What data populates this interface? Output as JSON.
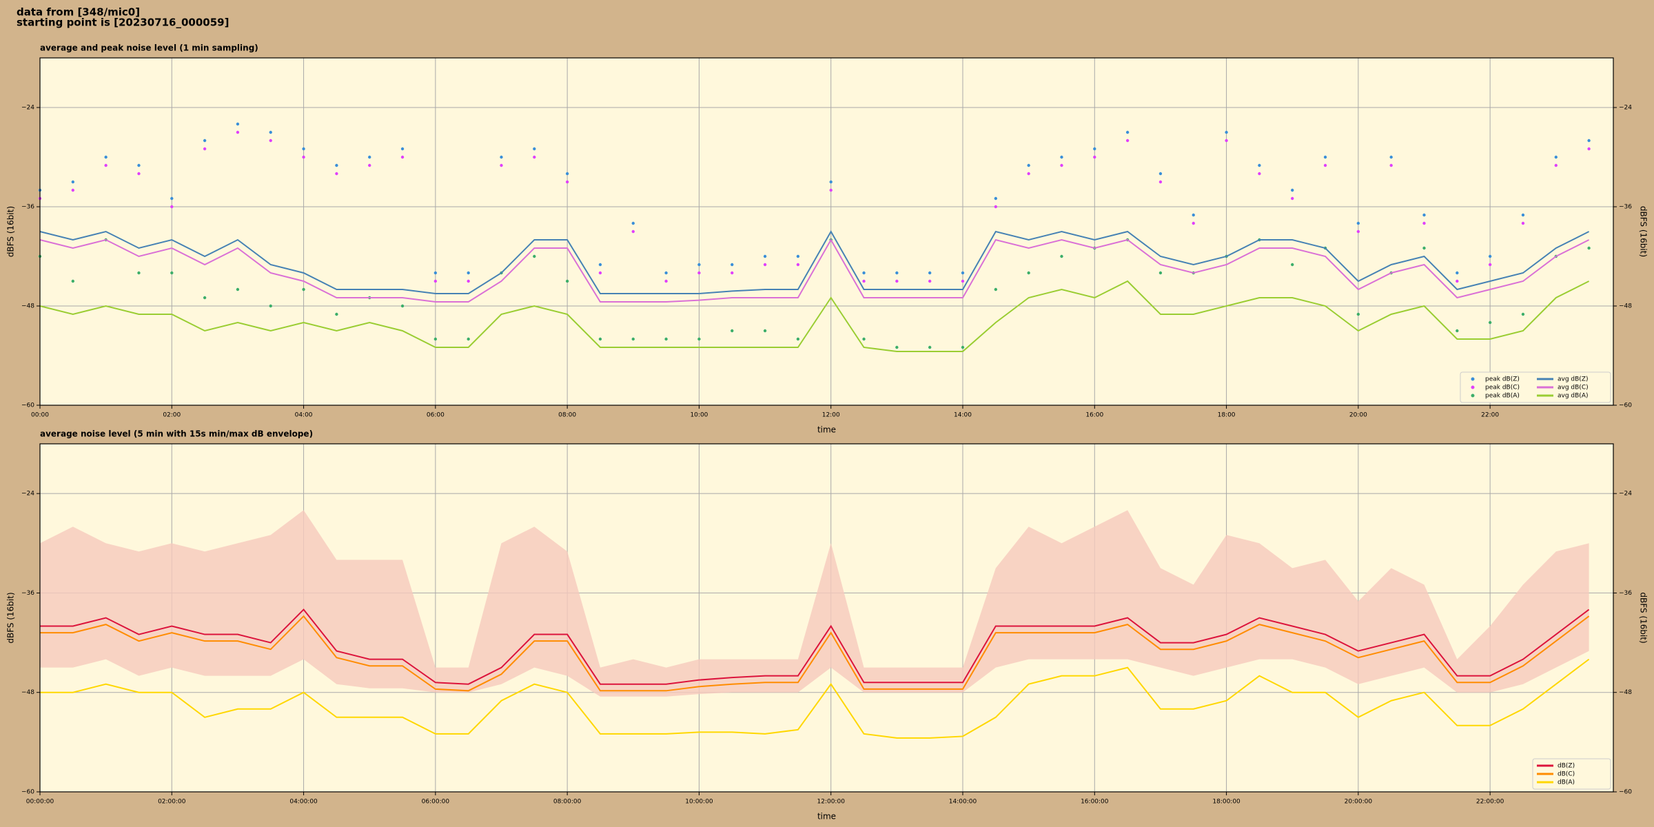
{
  "header": [
    "data from [348/mic0]",
    "starting point is [20230716_000059]"
  ],
  "chart_data": [
    {
      "type": "line",
      "title": "average and peak noise level (1 min sampling)",
      "x_label": "time",
      "y_label": "dBFS (16bit)",
      "xlim": [
        0,
        23.87
      ],
      "ylim": [
        -60,
        -18
      ],
      "grid": true,
      "legend": "lower right",
      "xticks": [
        {
          "value": 0,
          "label": "00:00"
        },
        {
          "value": 2,
          "label": "02:00"
        },
        {
          "value": 4,
          "label": "04:00"
        },
        {
          "value": 6,
          "label": "06:00"
        },
        {
          "value": 8,
          "label": "08:00"
        },
        {
          "value": 10,
          "label": "10:00"
        },
        {
          "value": 12,
          "label": "12:00"
        },
        {
          "value": 14,
          "label": "14:00"
        },
        {
          "value": 16,
          "label": "16:00"
        },
        {
          "value": 18,
          "label": "18:00"
        },
        {
          "value": 20,
          "label": "20:00"
        },
        {
          "value": 22,
          "label": "22:00"
        }
      ],
      "yticks": [
        {
          "value": -60,
          "label": "−60"
        },
        {
          "value": -48,
          "label": "−48"
        },
        {
          "value": -36,
          "label": "−36"
        },
        {
          "value": -24,
          "label": "−24"
        }
      ],
      "x": [
        0,
        0.5,
        1,
        1.5,
        2,
        2.5,
        3,
        3.5,
        4,
        4.5,
        5,
        5.5,
        6,
        6.5,
        7,
        7.5,
        8,
        8.5,
        9,
        9.5,
        10,
        10.5,
        11,
        11.5,
        12,
        12.5,
        13,
        13.5,
        14,
        14.5,
        15,
        15.5,
        16,
        16.5,
        17,
        17.5,
        18,
        18.5,
        19,
        19.5,
        20,
        20.5,
        21,
        21.5,
        22,
        22.5,
        23,
        23.5
      ],
      "series": [
        {
          "name": "peak dB(Z)",
          "style": "dots",
          "color": "#3a8fd8",
          "values": [
            -34,
            -33,
            -30,
            -31,
            -35,
            -28,
            -26,
            -27,
            -29,
            -31,
            -30,
            -29,
            -44,
            -44,
            -30,
            -29,
            -32,
            -43,
            -38,
            -44,
            -43,
            -43,
            -42,
            -42,
            -33,
            -44,
            -44,
            -44,
            -44,
            -35,
            -31,
            -30,
            -29,
            -27,
            -32,
            -37,
            -27,
            -31,
            -34,
            -30,
            -38,
            -30,
            -37,
            -44,
            -42,
            -37,
            -30,
            -28
          ]
        },
        {
          "name": "peak dB(C)",
          "style": "dots",
          "color": "#e040fb",
          "values": [
            -35,
            -34,
            -31,
            -32,
            -36,
            -29,
            -27,
            -28,
            -30,
            -32,
            -31,
            -30,
            -45,
            -45,
            -31,
            -30,
            -33,
            -44,
            -39,
            -45,
            -44,
            -44,
            -43,
            -43,
            -34,
            -45,
            -45,
            -45,
            -45,
            -36,
            -32,
            -31,
            -30,
            -28,
            -33,
            -38,
            -28,
            -32,
            -35,
            -31,
            -39,
            -31,
            -38,
            -45,
            -43,
            -38,
            -31,
            -29
          ]
        },
        {
          "name": "peak dB(A)",
          "style": "dots",
          "color": "#3cae6a",
          "values": [
            -42,
            -45,
            -40,
            -44,
            -44,
            -47,
            -46,
            -48,
            -46,
            -49,
            -47,
            -48,
            -52,
            -52,
            -44,
            -42,
            -45,
            -52,
            -52,
            -52,
            -52,
            -51,
            -51,
            -52,
            -40,
            -52,
            -53,
            -53,
            -53,
            -46,
            -44,
            -42,
            -41,
            -40,
            -44,
            -44,
            -42,
            -40,
            -43,
            -41,
            -49,
            -44,
            -41,
            -51,
            -50,
            -49,
            -42,
            -41
          ]
        },
        {
          "name": "avg dB(Z)",
          "style": "line",
          "color": "#4682b4",
          "values": [
            -39,
            -40,
            -39,
            -41,
            -40,
            -42,
            -40,
            -43,
            -44,
            -46,
            -46,
            -46,
            -46.5,
            -46.5,
            -44,
            -40,
            -40,
            -46.5,
            -46.5,
            -46.5,
            -46.5,
            -46.2,
            -46,
            -46,
            -39,
            -46,
            -46,
            -46,
            -46,
            -39,
            -40,
            -39,
            -40,
            -39,
            -42,
            -43,
            -42,
            -40,
            -40,
            -41,
            -45,
            -43,
            -42,
            -46,
            -45,
            -44,
            -41,
            -39
          ]
        },
        {
          "name": "avg dB(C)",
          "style": "line",
          "color": "#da70d6",
          "values": [
            -40,
            -41,
            -40,
            -42,
            -41,
            -43,
            -41,
            -44,
            -45,
            -47,
            -47,
            -47,
            -47.5,
            -47.5,
            -45,
            -41,
            -41,
            -47.5,
            -47.5,
            -47.5,
            -47.3,
            -47,
            -47,
            -47,
            -40,
            -47,
            -47,
            -47,
            -47,
            -40,
            -41,
            -40,
            -41,
            -40,
            -43,
            -44,
            -43,
            -41,
            -41,
            -42,
            -46,
            -44,
            -43,
            -47,
            -46,
            -45,
            -42,
            -40
          ]
        },
        {
          "name": "avg dB(A)",
          "style": "line",
          "color": "#9acd32",
          "values": [
            -48,
            -49,
            -48,
            -49,
            -49,
            -51,
            -50,
            -51,
            -50,
            -51,
            -50,
            -51,
            -53,
            -53,
            -49,
            -48,
            -49,
            -53,
            -53,
            -53,
            -53,
            -53,
            -53,
            -53,
            -47,
            -53,
            -53.5,
            -53.5,
            -53.5,
            -50,
            -47,
            -46,
            -47,
            -45,
            -49,
            -49,
            -48,
            -47,
            -47,
            -48,
            -51,
            -49,
            -48,
            -52,
            -52,
            -51,
            -47,
            -45
          ]
        }
      ]
    },
    {
      "type": "line",
      "title": "average noise level (5 min with 15s min/max dB envelope)",
      "x_label": "time",
      "y_label": "dBFS (16bit)",
      "xlim": [
        0,
        23.87
      ],
      "ylim": [
        -60,
        -18
      ],
      "grid": true,
      "legend": "lower right",
      "xticks": [
        {
          "value": 0,
          "label": "00:00:00"
        },
        {
          "value": 2,
          "label": "02:00:00"
        },
        {
          "value": 4,
          "label": "04:00:00"
        },
        {
          "value": 6,
          "label": "06:00:00"
        },
        {
          "value": 8,
          "label": "08:00:00"
        },
        {
          "value": 10,
          "label": "10:00:00"
        },
        {
          "value": 12,
          "label": "12:00:00"
        },
        {
          "value": 14,
          "label": "14:00:00"
        },
        {
          "value": 16,
          "label": "16:00:00"
        },
        {
          "value": 18,
          "label": "18:00:00"
        },
        {
          "value": 20,
          "label": "20:00:00"
        },
        {
          "value": 22,
          "label": "22:00:00"
        }
      ],
      "yticks": [
        {
          "value": -60,
          "label": "−60"
        },
        {
          "value": -48,
          "label": "−48"
        },
        {
          "value": -36,
          "label": "−36"
        },
        {
          "value": -24,
          "label": "−24"
        }
      ],
      "x": [
        0,
        0.5,
        1,
        1.5,
        2,
        2.5,
        3,
        3.5,
        4,
        4.5,
        5,
        5.5,
        6,
        6.5,
        7,
        7.5,
        8,
        8.5,
        9,
        9.5,
        10,
        10.5,
        11,
        11.5,
        12,
        12.5,
        13,
        13.5,
        14,
        14.5,
        15,
        15.5,
        16,
        16.5,
        17,
        17.5,
        18,
        18.5,
        19,
        19.5,
        20,
        20.5,
        21,
        21.5,
        22,
        22.5,
        23,
        23.5
      ],
      "envelope": {
        "color": "#f6c9bd",
        "max": [
          -30,
          -28,
          -30,
          -31,
          -30,
          -31,
          -30,
          -29,
          -26,
          -32,
          -32,
          -32,
          -45,
          -45,
          -30,
          -28,
          -31,
          -45,
          -44,
          -45,
          -44,
          -44,
          -44,
          -44,
          -30,
          -45,
          -45,
          -45,
          -45,
          -33,
          -28,
          -30,
          -28,
          -26,
          -33,
          -35,
          -29,
          -30,
          -33,
          -32,
          -37,
          -33,
          -35,
          -44,
          -40,
          -35,
          -31,
          -30
        ],
        "min": [
          -45,
          -45,
          -44,
          -46,
          -45,
          -46,
          -46,
          -46,
          -44,
          -47,
          -47.5,
          -47.5,
          -48,
          -48,
          -47,
          -45,
          -46,
          -48.5,
          -48.5,
          -48.5,
          -48.2,
          -48,
          -48,
          -48,
          -45,
          -48,
          -48,
          -48,
          -48,
          -45,
          -44,
          -44,
          -44,
          -44,
          -45,
          -46,
          -45,
          -44,
          -44,
          -45,
          -47,
          -46,
          -45,
          -48,
          -48,
          -47,
          -45,
          -43
        ]
      },
      "series": [
        {
          "name": "dB(Z)",
          "style": "line",
          "color": "#dc143c",
          "values": [
            -40,
            -40,
            -39,
            -41,
            -40,
            -41,
            -41,
            -42,
            -38,
            -43,
            -44,
            -44,
            -46.8,
            -47,
            -45,
            -41,
            -41,
            -47,
            -47,
            -47,
            -46.5,
            -46.2,
            -46,
            -46,
            -40,
            -46.8,
            -46.8,
            -46.8,
            -46.8,
            -40,
            -40,
            -40,
            -40,
            -39,
            -42,
            -42,
            -41,
            -39,
            -40,
            -41,
            -43,
            -42,
            -41,
            -46,
            -46,
            -44,
            -41,
            -38
          ]
        },
        {
          "name": "dB(C)",
          "style": "line",
          "color": "#ff8c00",
          "values": [
            -40.8,
            -40.8,
            -39.8,
            -41.8,
            -40.8,
            -41.8,
            -41.8,
            -42.8,
            -38.8,
            -43.8,
            -44.8,
            -44.8,
            -47.6,
            -47.8,
            -45.8,
            -41.8,
            -41.8,
            -47.8,
            -47.8,
            -47.8,
            -47.3,
            -47,
            -46.8,
            -46.8,
            -40.8,
            -47.6,
            -47.6,
            -47.6,
            -47.6,
            -40.8,
            -40.8,
            -40.8,
            -40.8,
            -39.8,
            -42.8,
            -42.8,
            -41.8,
            -39.8,
            -40.8,
            -41.8,
            -43.8,
            -42.8,
            -41.8,
            -46.8,
            -46.8,
            -44.8,
            -41.8,
            -38.8
          ]
        },
        {
          "name": "dB(A)",
          "style": "line",
          "color": "#ffd700",
          "values": [
            -48,
            -48,
            -47,
            -48,
            -48,
            -51,
            -50,
            -50,
            -48,
            -51,
            -51,
            -51,
            -53,
            -53,
            -49,
            -47,
            -48,
            -53,
            -53,
            -53,
            -52.8,
            -52.8,
            -53,
            -52.5,
            -47,
            -53,
            -53.5,
            -53.5,
            -53.3,
            -51,
            -47,
            -46,
            -46,
            -45,
            -50,
            -50,
            -49,
            -46,
            -48,
            -48,
            -51,
            -49,
            -48,
            -52,
            -52,
            -50,
            -47,
            -44
          ]
        }
      ]
    }
  ]
}
